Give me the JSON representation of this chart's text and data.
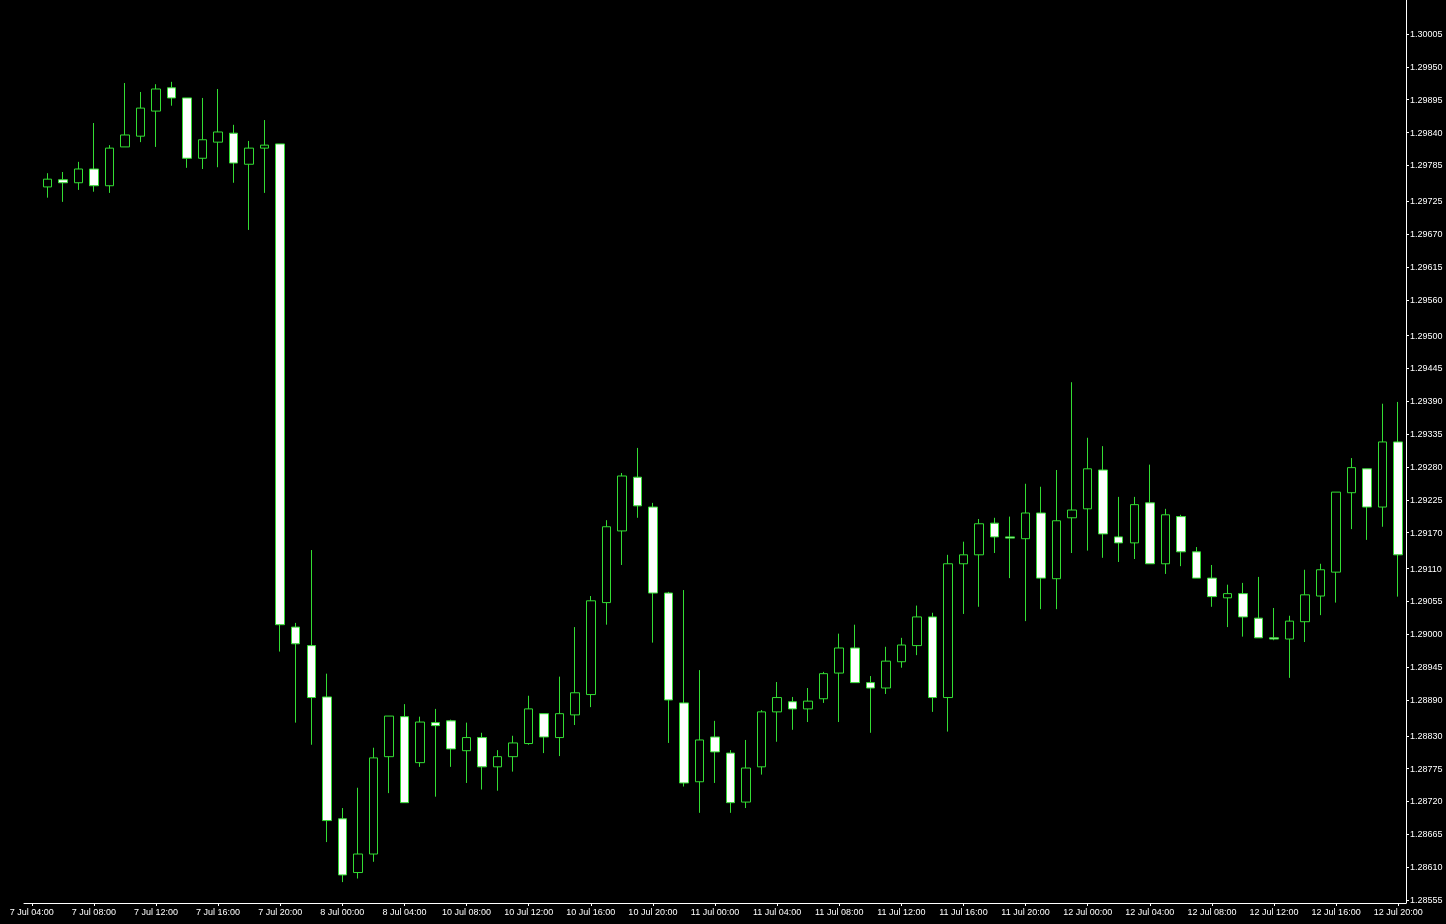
{
  "chart_data": {
    "type": "candlestick",
    "categories": [
      "7 Jul 04:00",
      null,
      null,
      null,
      "7 Jul 08:00",
      null,
      null,
      null,
      "7 Jul 12:00",
      null,
      null,
      null,
      "7 Jul 16:00",
      null,
      null,
      null,
      "7 Jul 20:00",
      null,
      null,
      null,
      "8 Jul 00:00",
      null,
      null,
      null,
      "8 Jul 04:00",
      null,
      null,
      null,
      "10 Jul 08:00",
      null,
      null,
      null,
      "10 Jul 12:00",
      null,
      null,
      null,
      "10 Jul 16:00",
      null,
      null,
      null,
      "10 Jul 20:00",
      null,
      null,
      null,
      "11 Jul 00:00",
      null,
      null,
      null,
      "11 Jul 04:00",
      null,
      null,
      null,
      "11 Jul 08:00",
      null,
      null,
      null,
      "11 Jul 12:00",
      null,
      null,
      null,
      "11 Jul 16:00",
      null,
      null,
      null,
      "11 Jul 20:00",
      null,
      null,
      null,
      "12 Jul 00:00",
      null,
      null,
      null,
      "12 Jul 04:00",
      null,
      null,
      null,
      "12 Jul 08:00",
      null,
      null,
      null,
      "12 Jul 12:00",
      null,
      null,
      null,
      "12 Jul 16:00",
      null,
      null,
      null,
      "12 Jul 20:00"
    ],
    "ohlc": [
      null,
      [
        1.29749,
        1.29772,
        1.29731,
        1.29762
      ],
      [
        1.29761,
        1.29774,
        1.29724,
        1.29756
      ],
      [
        1.29756,
        1.29791,
        1.29744,
        1.29779
      ],
      [
        1.29779,
        1.29856,
        1.29741,
        1.29751
      ],
      [
        1.29751,
        1.29819,
        1.29739,
        1.29814
      ],
      [
        1.29816,
        1.29923,
        1.29816,
        1.29836
      ],
      [
        1.29834,
        1.29908,
        1.29824,
        1.29881
      ],
      [
        1.29876,
        1.29921,
        1.29816,
        1.29913
      ],
      [
        1.29915,
        1.29925,
        1.29885,
        1.29898
      ],
      [
        1.29898,
        1.29898,
        1.29781,
        1.29797
      ],
      [
        1.29797,
        1.29898,
        1.29779,
        1.29828
      ],
      [
        1.29824,
        1.29913,
        1.29782,
        1.29841
      ],
      [
        1.29839,
        1.29853,
        1.29756,
        1.29789
      ],
      [
        1.29787,
        1.29826,
        1.29677,
        1.29814
      ],
      [
        1.29814,
        1.29861,
        1.29739,
        1.29819
      ],
      [
        1.29821,
        1.29821,
        1.28971,
        1.29016
      ],
      [
        1.29012,
        1.29019,
        1.28852,
        1.28984
      ],
      [
        1.28981,
        1.29141,
        1.28815,
        1.28894
      ],
      [
        1.28895,
        1.28934,
        1.28652,
        1.28688
      ],
      [
        1.28691,
        1.28709,
        1.28585,
        1.28597
      ],
      [
        1.28601,
        1.28743,
        1.28591,
        1.28632
      ],
      [
        1.28632,
        1.2881,
        1.28619,
        1.28793
      ],
      [
        1.28795,
        1.28863,
        1.28734,
        1.28863
      ],
      [
        1.28862,
        1.28883,
        1.28718,
        1.28718
      ],
      [
        1.28785,
        1.28862,
        1.28778,
        1.28853
      ],
      [
        1.28852,
        1.28875,
        1.28728,
        1.28847
      ],
      [
        1.28855,
        1.28857,
        1.28778,
        1.28808
      ],
      [
        1.28805,
        1.28852,
        1.28751,
        1.28827
      ],
      [
        1.28827,
        1.28835,
        1.2874,
        1.28778
      ],
      [
        1.28778,
        1.28806,
        1.28738,
        1.28795
      ],
      [
        1.28795,
        1.2883,
        1.2877,
        1.28818
      ],
      [
        1.28817,
        1.28897,
        1.28815,
        1.28875
      ],
      [
        1.28867,
        1.28867,
        1.28801,
        1.28828
      ],
      [
        1.28827,
        1.28929,
        1.28796,
        1.28867
      ],
      [
        1.28865,
        1.29012,
        1.28848,
        1.28902
      ],
      [
        1.28899,
        1.29064,
        1.28878,
        1.29056
      ],
      [
        1.29053,
        1.29191,
        1.29016,
        1.2918
      ],
      [
        1.29173,
        1.2927,
        1.29116,
        1.29265
      ],
      [
        1.29263,
        1.29312,
        1.29195,
        1.29215
      ],
      [
        1.29213,
        1.2922,
        1.28986,
        1.29069
      ],
      [
        1.29069,
        1.29071,
        1.28818,
        1.2889
      ],
      [
        1.28885,
        1.29074,
        1.28745,
        1.28751
      ],
      [
        1.28753,
        1.2894,
        1.28701,
        1.28823
      ],
      [
        1.28828,
        1.28855,
        1.28751,
        1.28803
      ],
      [
        1.28801,
        1.28806,
        1.28701,
        1.28718
      ],
      [
        1.28719,
        1.28823,
        1.28709,
        1.28776
      ],
      [
        1.28778,
        1.28873,
        1.28765,
        1.2887
      ],
      [
        1.2887,
        1.2892,
        1.2882,
        1.28894
      ],
      [
        1.28887,
        1.28895,
        1.2884,
        1.28875
      ],
      [
        1.28875,
        1.2891,
        1.28853,
        1.28888
      ],
      [
        1.28892,
        1.28937,
        1.28885,
        1.28934
      ],
      [
        1.28935,
        1.29001,
        1.28853,
        1.28977
      ],
      [
        1.28977,
        1.29016,
        1.28919,
        1.28919
      ],
      [
        1.28919,
        1.2893,
        1.28835,
        1.2891
      ],
      [
        1.2891,
        1.28979,
        1.289,
        1.28955
      ],
      [
        1.28954,
        1.28994,
        1.28944,
        1.28982
      ],
      [
        1.28981,
        1.29048,
        1.28965,
        1.29029
      ],
      [
        1.29029,
        1.29036,
        1.2887,
        1.28894
      ],
      [
        1.28894,
        1.29133,
        1.28837,
        1.29118
      ],
      [
        1.29118,
        1.29155,
        1.29034,
        1.29133
      ],
      [
        1.29133,
        1.29193,
        1.29046,
        1.29185
      ],
      [
        1.29186,
        1.29195,
        1.29136,
        1.29163
      ],
      [
        1.29163,
        1.29197,
        1.29094,
        1.29161
      ],
      [
        1.2916,
        1.29252,
        1.29022,
        1.29203
      ],
      [
        1.29203,
        1.29247,
        1.29042,
        1.29094
      ],
      [
        1.29093,
        1.29275,
        1.29042,
        1.2919
      ],
      [
        1.29195,
        1.29422,
        1.29136,
        1.29208
      ],
      [
        1.2921,
        1.29329,
        1.2914,
        1.29277
      ],
      [
        1.29275,
        1.29315,
        1.29128,
        1.29168
      ],
      [
        1.29163,
        1.2923,
        1.29121,
        1.29153
      ],
      [
        1.29153,
        1.2923,
        1.29126,
        1.29217
      ],
      [
        1.2922,
        1.29284,
        1.29118,
        1.29118
      ],
      [
        1.29118,
        1.2921,
        1.29101,
        1.292
      ],
      [
        1.29197,
        1.292,
        1.29114,
        1.29138
      ],
      [
        1.29138,
        1.29146,
        1.29094,
        1.29094
      ],
      [
        1.29094,
        1.29116,
        1.29046,
        1.29063
      ],
      [
        1.29061,
        1.29083,
        1.29012,
        1.29068
      ],
      [
        1.29068,
        1.29086,
        1.28996,
        1.29029
      ],
      [
        1.29027,
        1.29096,
        1.28994,
        1.28994
      ],
      [
        1.28994,
        1.29044,
        1.2899,
        1.28992
      ],
      [
        1.28992,
        1.29031,
        1.28927,
        1.29022
      ],
      [
        1.29021,
        1.29108,
        1.28987,
        1.29066
      ],
      [
        1.29064,
        1.29118,
        1.29032,
        1.29108
      ],
      [
        1.29104,
        1.29238,
        1.29053,
        1.29238
      ],
      [
        1.29237,
        1.29295,
        1.29176,
        1.29279
      ],
      [
        1.29277,
        1.29277,
        1.29158,
        1.29213
      ],
      [
        1.29213,
        1.29386,
        1.2918,
        1.29322
      ],
      [
        1.29322,
        1.29389,
        1.29063,
        1.29133
      ]
    ],
    "color": "#33dd33",
    "colors": [
      null,
      "#000000",
      "#ffffff",
      "#000000",
      "#ffffff",
      "#000000",
      "#000000",
      "#000000",
      "#000000",
      "#ffffff",
      "#ffffff",
      "#000000",
      "#000000",
      "#ffffff",
      "#000000",
      "#000000",
      "#ffffff",
      "#ffffff",
      "#ffffff",
      "#ffffff",
      "#ffffff",
      "#000000",
      "#000000",
      "#000000",
      "#ffffff",
      "#000000",
      "#ffffff",
      "#ffffff",
      "#000000",
      "#ffffff",
      "#000000",
      "#000000",
      "#000000",
      "#ffffff",
      "#000000",
      "#000000",
      "#000000",
      "#000000",
      "#000000",
      "#ffffff",
      "#ffffff",
      "#ffffff",
      "#ffffff",
      "#000000",
      "#ffffff",
      "#ffffff",
      "#000000",
      "#000000",
      "#000000",
      "#ffffff",
      "#000000",
      "#000000",
      "#000000",
      "#ffffff",
      "#ffffff",
      "#000000",
      "#000000",
      "#000000",
      "#ffffff",
      "#000000",
      "#000000",
      "#000000",
      "#ffffff",
      "#ffffff",
      "#000000",
      "#ffffff",
      "#000000",
      "#000000",
      "#000000",
      "#ffffff",
      "#ffffff",
      "#000000",
      "#ffffff",
      "#000000",
      "#ffffff",
      "#ffffff",
      "#ffffff",
      "#000000",
      "#ffffff",
      "#ffffff",
      "#ffffff",
      "#000000",
      "#000000",
      "#000000",
      "#000000",
      "#000000",
      "#ffffff",
      "#000000",
      "#ffffff"
    ],
    "ylim": [
      1.2855,
      1.30062
    ],
    "yticks": [
      1.28555,
      {
        "value": 1.2861,
        "label": "1.28610"
      },
      1.28665,
      {
        "value": 1.2872,
        "label": "1.28720"
      },
      1.28775,
      {
        "value": 1.2883,
        "label": "1.28830"
      },
      {
        "value": 1.2889,
        "label": "1.28890"
      },
      1.28945,
      {
        "value": 1.29,
        "label": "1.29000"
      },
      1.29055,
      {
        "value": 1.2911,
        "label": "1.29110"
      },
      {
        "value": 1.2917,
        "label": "1.29170"
      },
      1.29225,
      {
        "value": 1.2928,
        "label": "1.29280"
      },
      1.29335,
      {
        "value": 1.2939,
        "label": "1.29390"
      },
      1.29445,
      {
        "value": 1.295,
        "label": "1.29500"
      },
      {
        "value": 1.2956,
        "label": "1.29560"
      },
      1.29615,
      {
        "value": 1.2967,
        "label": "1.29670"
      },
      1.29725,
      1.29785,
      {
        "value": 1.2984,
        "label": "1.29840"
      },
      1.29895,
      {
        "value": 1.2995,
        "label": "1.29950"
      },
      1.30005
    ]
  }
}
